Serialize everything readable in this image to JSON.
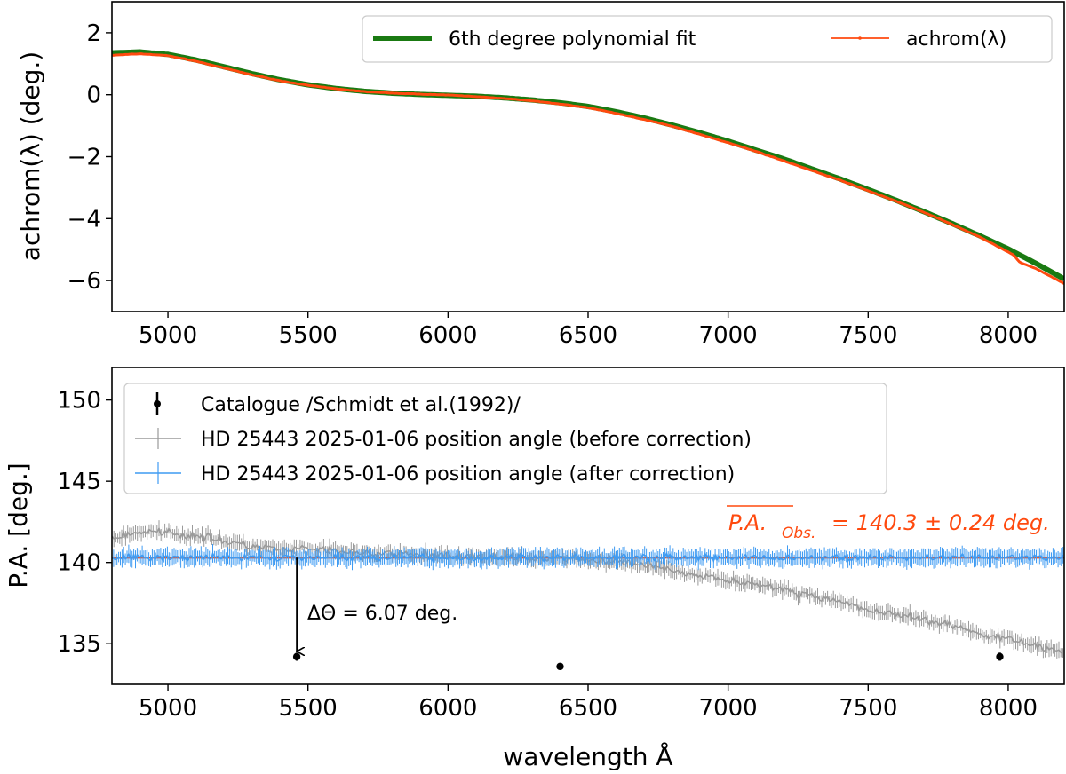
{
  "colors": {
    "fit": "#1a7a12",
    "achrom": "#ff4a0f",
    "catalogue": "#000000",
    "before": "#9a9a9a",
    "after": "#3f9bf2",
    "mean_line": "#ff4a0f"
  },
  "chart_data": [
    {
      "type": "line",
      "xlim": [
        4800,
        8200
      ],
      "ylim": [
        -7,
        3
      ],
      "xticks": [
        5000,
        5500,
        6000,
        6500,
        7000,
        7500,
        8000
      ],
      "yticks": [
        2,
        0,
        -2,
        -4,
        -6
      ],
      "xtick_labels": [
        "5000",
        "5500",
        "6000",
        "6500",
        "7000",
        "7500",
        "8000"
      ],
      "ytick_labels": [
        "2",
        "0",
        "−2",
        "−4",
        "−6"
      ],
      "ylabel": "achrom(λ) (deg.)",
      "xlabel": "",
      "legend_position": "top-right",
      "series": [
        {
          "name": "6th degree polynomial fit",
          "x": [
            4800,
            4900,
            5000,
            5100,
            5200,
            5300,
            5400,
            5500,
            5600,
            5700,
            5800,
            5900,
            6000,
            6100,
            6200,
            6300,
            6400,
            6500,
            6600,
            6700,
            6800,
            6900,
            7000,
            7100,
            7200,
            7300,
            7400,
            7500,
            7600,
            7700,
            7800,
            7900,
            8000,
            8100,
            8200
          ],
          "y": [
            1.35,
            1.38,
            1.3,
            1.12,
            0.9,
            0.68,
            0.48,
            0.32,
            0.2,
            0.11,
            0.05,
            0.01,
            -0.02,
            -0.05,
            -0.1,
            -0.17,
            -0.26,
            -0.38,
            -0.55,
            -0.75,
            -0.98,
            -1.23,
            -1.5,
            -1.79,
            -2.08,
            -2.4,
            -2.72,
            -3.06,
            -3.41,
            -3.78,
            -4.16,
            -4.56,
            -4.98,
            -5.45,
            -5.95
          ]
        },
        {
          "name": "achrom(λ)",
          "x": [
            4800,
            4900,
            5000,
            5100,
            5200,
            5300,
            5400,
            5500,
            5600,
            5700,
            5800,
            5900,
            6000,
            6100,
            6200,
            6300,
            6400,
            6500,
            6600,
            6700,
            6800,
            6900,
            7000,
            7100,
            7200,
            7300,
            7400,
            7500,
            7600,
            7700,
            7800,
            7900,
            8000,
            8020,
            8040,
            8100,
            8200
          ],
          "y": [
            1.27,
            1.32,
            1.26,
            1.08,
            0.86,
            0.64,
            0.45,
            0.3,
            0.19,
            0.1,
            0.05,
            0.02,
            -0.01,
            -0.06,
            -0.12,
            -0.2,
            -0.3,
            -0.42,
            -0.6,
            -0.8,
            -1.02,
            -1.28,
            -1.55,
            -1.83,
            -2.14,
            -2.45,
            -2.76,
            -3.1,
            -3.44,
            -3.8,
            -4.19,
            -4.6,
            -5.08,
            -5.18,
            -5.4,
            -5.62,
            -6.1
          ]
        }
      ]
    },
    {
      "type": "scatter",
      "xlim": [
        4800,
        8200
      ],
      "ylim": [
        132.5,
        152
      ],
      "xticks": [
        5000,
        5500,
        6000,
        6500,
        7000,
        7500,
        8000
      ],
      "yticks": [
        135,
        140,
        145,
        150
      ],
      "xtick_labels": [
        "5000",
        "5500",
        "6000",
        "6500",
        "7000",
        "7500",
        "8000"
      ],
      "ytick_labels": [
        "135",
        "140",
        "145",
        "150"
      ],
      "ylabel": "P.A. [deg.]",
      "xlabel": "wavelength Å",
      "legend_position": "top-left",
      "mean_line": {
        "value": 140.3,
        "error": 0.24,
        "label": "P.A.",
        "subscript": "Obs.",
        "text": "= 140.3 ± 0.24 deg."
      },
      "annotation": {
        "text": "ΔΘ = 6.07 deg.",
        "x": 5460,
        "y_from": 140.3,
        "y_to": 134.2
      },
      "series": [
        {
          "name": "Catalogue /Schmidt et al.(1992)/",
          "x": [
            5460,
            6400,
            7970
          ],
          "y": [
            134.2,
            133.6,
            134.2
          ],
          "err": [
            0.25,
            0.2,
            0.25
          ]
        },
        {
          "name": "HD 25443 2025-01-06 position angle (before correction)",
          "x": [
            4800,
            4900,
            5000,
            5100,
            5200,
            5300,
            5400,
            5500,
            5600,
            5700,
            5800,
            5900,
            6000,
            6100,
            6200,
            6300,
            6400,
            6500,
            6600,
            6700,
            6800,
            6900,
            7000,
            7100,
            7200,
            7300,
            7400,
            7500,
            7600,
            7700,
            7800,
            7900,
            8000,
            8100,
            8200
          ],
          "y": [
            141.5,
            141.9,
            141.8,
            141.7,
            141.3,
            141.0,
            140.8,
            140.8,
            140.7,
            140.6,
            140.5,
            140.5,
            140.4,
            140.4,
            140.3,
            140.3,
            140.3,
            140.2,
            140.0,
            139.8,
            139.5,
            139.2,
            139.0,
            138.6,
            138.3,
            137.9,
            137.6,
            137.1,
            136.8,
            136.5,
            136.1,
            135.6,
            135.3,
            134.9,
            134.5
          ],
          "err": 0.4
        },
        {
          "name": "HD 25443 2025-01-06 position angle (after correction)",
          "x": [
            4800,
            8200
          ],
          "y": [
            140.3,
            140.3
          ],
          "err": 0.45
        }
      ]
    }
  ]
}
